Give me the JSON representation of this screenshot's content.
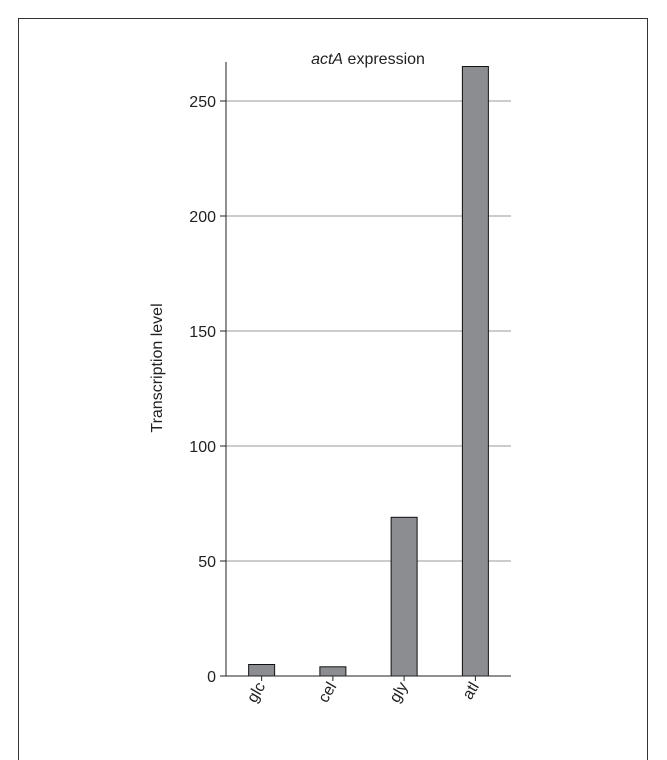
{
  "chart_data": {
    "type": "bar",
    "title_italic": "actA",
    "title_rest": " expression",
    "xlabel": "",
    "ylabel": "Transcription level",
    "categories": [
      "glc",
      "cel",
      "gly",
      "atl"
    ],
    "values": [
      5,
      4,
      69,
      265
    ],
    "ylim": [
      0,
      265
    ],
    "yticks": [
      0,
      50,
      100,
      150,
      200,
      250
    ],
    "grid": true,
    "bar_color": "#8c8d91"
  }
}
